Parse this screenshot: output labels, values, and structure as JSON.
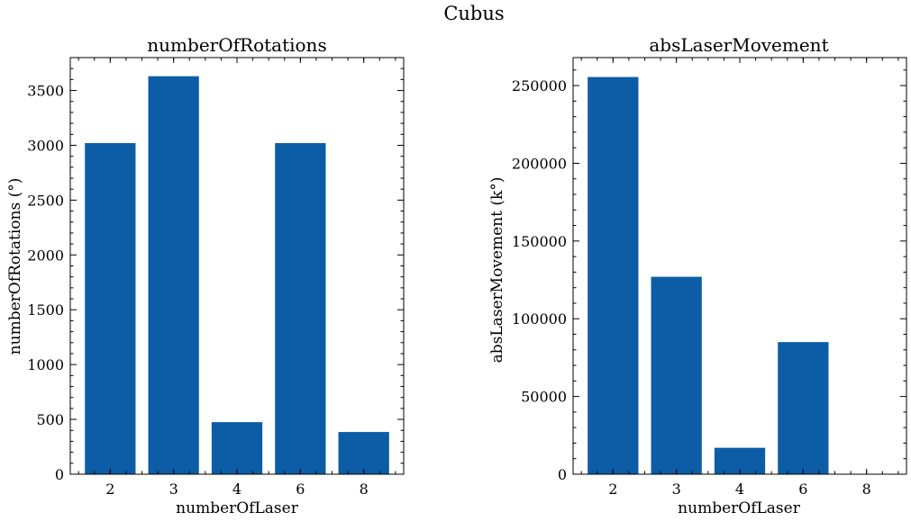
{
  "figure": {
    "suptitle": "Cubus"
  },
  "chart_data": [
    {
      "type": "bar",
      "title": "numberOfRotations",
      "xlabel": "numberOfLaser",
      "ylabel": "numberOfRotations (°)",
      "categories": [
        "2",
        "3",
        "4",
        "6",
        "8"
      ],
      "values": [
        3020,
        3630,
        475,
        3020,
        385
      ],
      "ylim": [
        0,
        3800
      ],
      "yticks": [
        0,
        500,
        1000,
        1500,
        2000,
        2500,
        3000,
        3500
      ],
      "bar_color": "#0C5DA5",
      "grid": false
    },
    {
      "type": "bar",
      "title": "absLaserMovement",
      "xlabel": "numberOfLaser",
      "ylabel": "absLaserMovement (k°)",
      "categories": [
        "2",
        "3",
        "4",
        "6",
        "8"
      ],
      "values": [
        255500,
        127000,
        17000,
        85000,
        0
      ],
      "ylim": [
        0,
        268000
      ],
      "yticks": [
        0,
        50000,
        100000,
        150000,
        200000,
        250000
      ],
      "bar_color": "#0C5DA5",
      "grid": false
    }
  ]
}
